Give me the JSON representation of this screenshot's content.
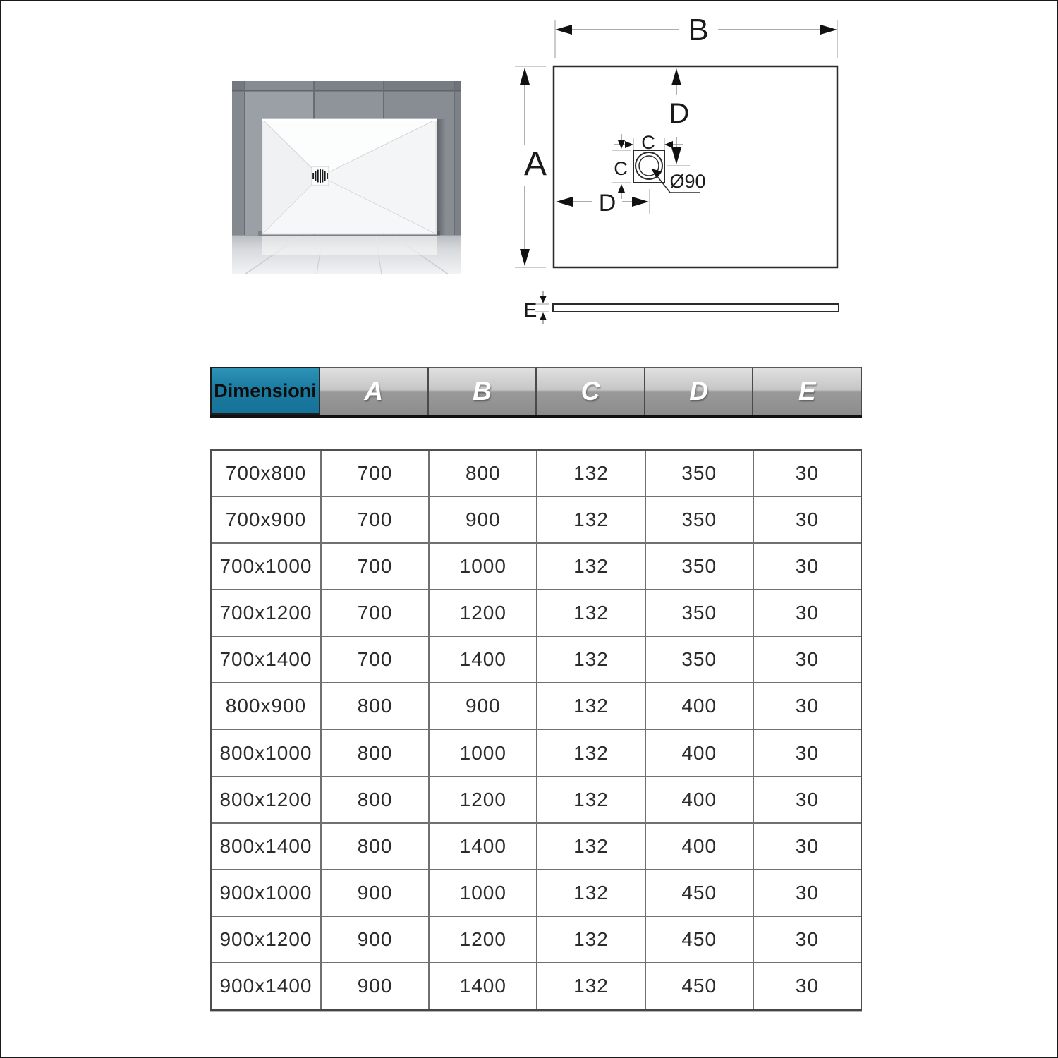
{
  "page": {
    "border_color": "#1a1a1a",
    "background": "#ffffff"
  },
  "photo": {
    "description": "white shower tray leaning against grey tiled wall",
    "drain_icon": "drain-grate"
  },
  "diagram": {
    "label_b": "B",
    "label_a": "A",
    "label_d_vertical": "D",
    "label_d_horizontal": "D",
    "label_c_top": "C",
    "label_c_left": "C",
    "label_diameter": "Ø90",
    "label_e": "E"
  },
  "table": {
    "header_title": "Dimensioni",
    "columns": [
      "A",
      "B",
      "C",
      "D",
      "E"
    ],
    "rows": [
      [
        "700x800",
        "700",
        "800",
        "132",
        "350",
        "30"
      ],
      [
        "700x900",
        "700",
        "900",
        "132",
        "350",
        "30"
      ],
      [
        "700x1000",
        "700",
        "1000",
        "132",
        "350",
        "30"
      ],
      [
        "700x1200",
        "700",
        "1200",
        "132",
        "350",
        "30"
      ],
      [
        "700x1400",
        "700",
        "1400",
        "132",
        "350",
        "30"
      ],
      [
        "800x900",
        "800",
        "900",
        "132",
        "400",
        "30"
      ],
      [
        "800x1000",
        "800",
        "1000",
        "132",
        "400",
        "30"
      ],
      [
        "800x1200",
        "800",
        "1200",
        "132",
        "400",
        "30"
      ],
      [
        "800x1400",
        "800",
        "1400",
        "132",
        "400",
        "30"
      ],
      [
        "900x1000",
        "900",
        "1000",
        "132",
        "450",
        "30"
      ],
      [
        "900x1200",
        "900",
        "1200",
        "132",
        "450",
        "30"
      ],
      [
        "900x1400",
        "900",
        "1400",
        "132",
        "450",
        "30"
      ]
    ]
  },
  "colors": {
    "accent_teal": "#1d7ea4",
    "header_gray": "#8d8d8d",
    "line_dark": "#2b2b2b",
    "line_thin": "#777777"
  }
}
